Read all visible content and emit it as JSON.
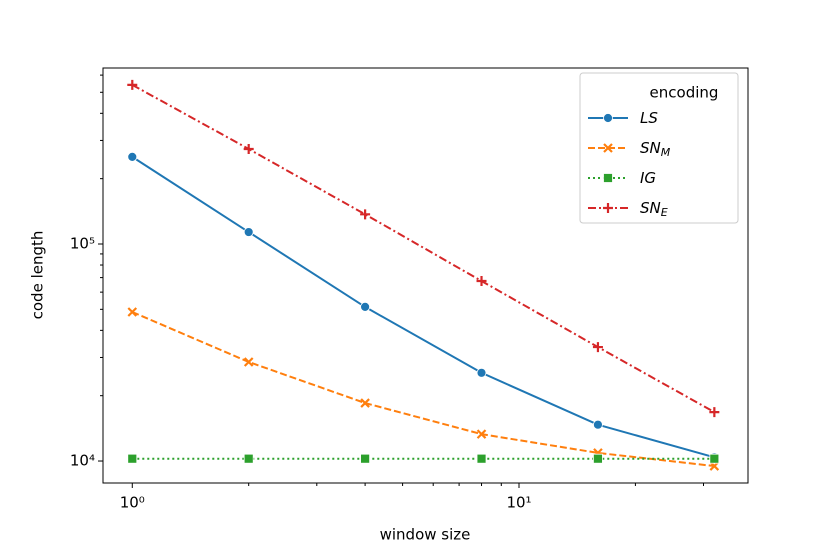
{
  "chart_data": {
    "type": "line",
    "xlabel": "window size",
    "ylabel": "code length",
    "xscale": "log",
    "yscale": "log",
    "x": [
      1,
      2,
      4,
      8,
      16,
      32
    ],
    "xlim": [
      0.84,
      39.1
    ],
    "ylim": [
      7920,
      647000
    ],
    "xticks": [
      {
        "value": 1,
        "label": "10⁰"
      },
      {
        "value": 10,
        "label": "10¹"
      }
    ],
    "yticks": [
      {
        "value": 10000,
        "label": "10⁴"
      },
      {
        "value": 100000,
        "label": "10⁵"
      }
    ],
    "xminorticks": [
      2,
      3,
      4,
      5,
      6,
      7,
      8,
      9,
      20,
      30
    ],
    "yminorticks": [
      20000,
      30000,
      40000,
      50000,
      60000,
      70000,
      80000,
      90000,
      200000,
      300000,
      400000,
      500000,
      600000
    ],
    "legend_title": "encoding",
    "legend_loc": "upper right",
    "series": [
      {
        "name": "LS",
        "color": "#1f77b4",
        "linestyle": "solid",
        "marker": "circle",
        "values": [
          252000,
          113500,
          51300,
          25500,
          14700,
          10400
        ]
      },
      {
        "name": "SN",
        "name_sub": "M",
        "color": "#ff7f0e",
        "linestyle": "dashed",
        "marker": "x",
        "values": [
          48600,
          28600,
          18500,
          13300,
          10900,
          9480
        ]
      },
      {
        "name": "IG",
        "color": "#2ca02c",
        "linestyle": "dotted",
        "marker": "square",
        "values": [
          10250,
          10250,
          10250,
          10250,
          10250,
          10250
        ]
      },
      {
        "name": "SN",
        "name_sub": "E",
        "color": "#d62728",
        "linestyle": "dashdot",
        "marker": "plus",
        "values": [
          541000,
          274000,
          137000,
          67500,
          33500,
          16800
        ]
      }
    ]
  }
}
